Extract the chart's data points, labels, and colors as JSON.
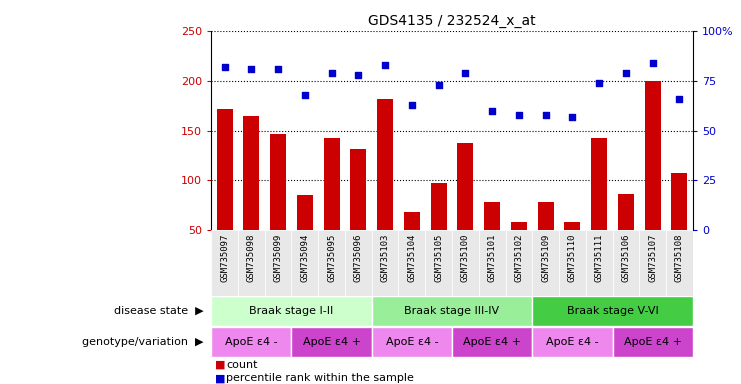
{
  "title": "GDS4135 / 232524_x_at",
  "samples": [
    "GSM735097",
    "GSM735098",
    "GSM735099",
    "GSM735094",
    "GSM735095",
    "GSM735096",
    "GSM735103",
    "GSM735104",
    "GSM735105",
    "GSM735100",
    "GSM735101",
    "GSM735102",
    "GSM735109",
    "GSM735110",
    "GSM735111",
    "GSM735106",
    "GSM735107",
    "GSM735108"
  ],
  "counts": [
    172,
    165,
    147,
    85,
    143,
    132,
    182,
    68,
    97,
    138,
    78,
    58,
    78,
    58,
    143,
    86,
    200,
    107
  ],
  "percentile_ranks": [
    82,
    81,
    81,
    68,
    79,
    78,
    83,
    63,
    73,
    79,
    60,
    58,
    58,
    57,
    74,
    79,
    84,
    66
  ],
  "ylim_left": [
    50,
    250
  ],
  "ylim_right": [
    0,
    100
  ],
  "yticks_left": [
    50,
    100,
    150,
    200,
    250
  ],
  "yticks_right": [
    0,
    25,
    50,
    75,
    100
  ],
  "bar_color": "#cc0000",
  "dot_color": "#0000cc",
  "disease_state_groups": [
    {
      "label": "Braak stage I-II",
      "start": 0,
      "end": 6,
      "color": "#ccffcc"
    },
    {
      "label": "Braak stage III-IV",
      "start": 6,
      "end": 12,
      "color": "#99ee99"
    },
    {
      "label": "Braak stage V-VI",
      "start": 12,
      "end": 18,
      "color": "#44cc44"
    }
  ],
  "genotype_groups": [
    {
      "label": "ApoE ε4 -",
      "start": 0,
      "end": 3,
      "color": "#ee88ee"
    },
    {
      "label": "ApoE ε4 +",
      "start": 3,
      "end": 6,
      "color": "#cc44cc"
    },
    {
      "label": "ApoE ε4 -",
      "start": 6,
      "end": 9,
      "color": "#ee88ee"
    },
    {
      "label": "ApoE ε4 +",
      "start": 9,
      "end": 12,
      "color": "#cc44cc"
    },
    {
      "label": "ApoE ε4 -",
      "start": 12,
      "end": 15,
      "color": "#ee88ee"
    },
    {
      "label": "ApoE ε4 +",
      "start": 15,
      "end": 18,
      "color": "#cc44cc"
    }
  ],
  "legend_count_color": "#cc0000",
  "legend_pct_color": "#0000cc",
  "bar_width": 0.6
}
